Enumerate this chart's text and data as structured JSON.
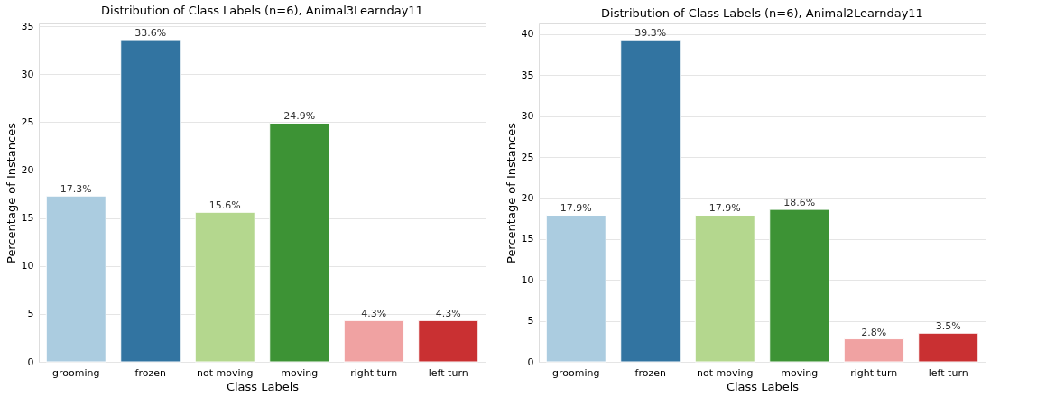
{
  "chart_data": [
    {
      "type": "bar",
      "title": "Distribution of Class Labels (n=6), Animal3Learnday11",
      "xlabel": "Class Labels",
      "ylabel": "Percentage of Instances",
      "categories": [
        "grooming",
        "frozen",
        "not moving",
        "moving",
        "right turn",
        "left turn"
      ],
      "values": [
        17.3,
        33.6,
        15.6,
        24.9,
        4.3,
        4.3
      ],
      "colors": [
        "#abcce0",
        "#3274a1",
        "#b4d78e",
        "#3d9335",
        "#f0a2a2",
        "#c93032"
      ],
      "value_labels": [
        "17.3%",
        "33.6%",
        "15.6%",
        "24.9%",
        "4.3%",
        "4.3%"
      ],
      "ylim": [
        0,
        35.3
      ],
      "yticks": [
        0,
        5,
        10,
        15,
        20,
        25,
        30,
        35
      ],
      "grid": "y"
    },
    {
      "type": "bar",
      "title": "Distribution of Class Labels (n=6), Animal2Learnday11",
      "xlabel": "Class Labels",
      "ylabel": "Percentage of Instances",
      "categories": [
        "grooming",
        "frozen",
        "not moving",
        "moving",
        "right turn",
        "left turn"
      ],
      "values": [
        17.9,
        39.3,
        17.9,
        18.6,
        2.8,
        3.5
      ],
      "colors": [
        "#abcce0",
        "#3274a1",
        "#b4d78e",
        "#3d9335",
        "#f0a2a2",
        "#c93032"
      ],
      "value_labels": [
        "17.9%",
        "39.3%",
        "17.9%",
        "18.6%",
        "2.8%",
        "3.5%"
      ],
      "ylim": [
        0,
        41.3
      ],
      "yticks": [
        0,
        5,
        10,
        15,
        20,
        25,
        30,
        35,
        40
      ],
      "grid": "y"
    }
  ]
}
